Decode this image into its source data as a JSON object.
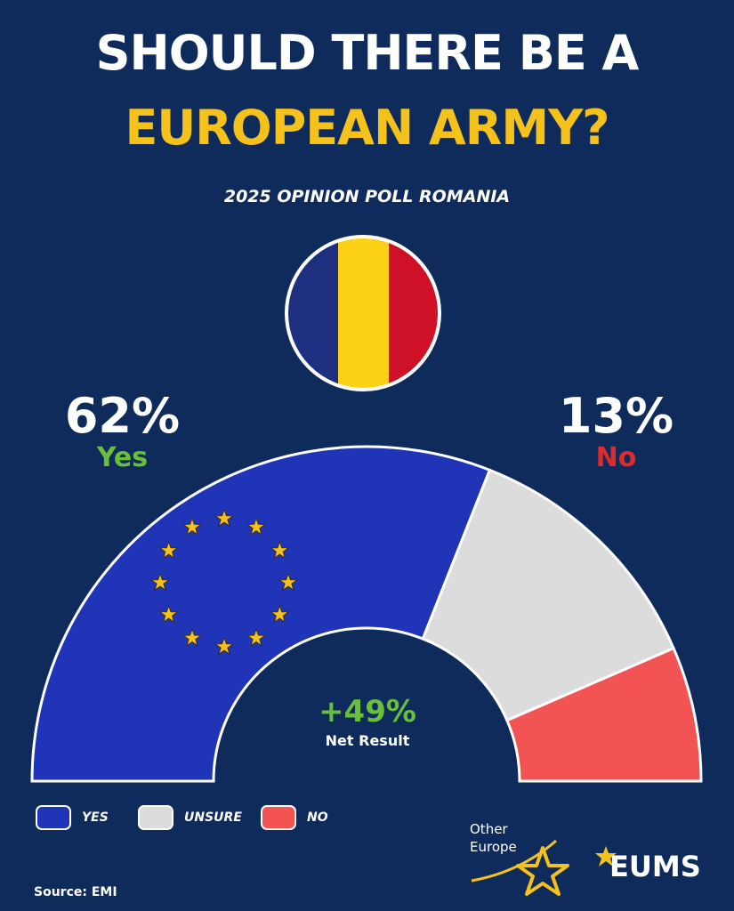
{
  "header": {
    "title_line1": "SHOULD THERE BE A",
    "title_line2": "EUROPEAN ARMY?",
    "subtitle": "2025 OPINION POLL ROMANIA"
  },
  "flag": {
    "stripes": [
      "#1d2f7e",
      "#fcd116",
      "#ce1126"
    ]
  },
  "callouts": {
    "yes_pct": "62%",
    "yes_label": "Yes",
    "no_pct": "13%",
    "no_label": "No",
    "net_value": "+49%",
    "net_label": "Net Result"
  },
  "legend": [
    {
      "label": "YES",
      "color": "#1f34b6"
    },
    {
      "label": "UNSURE",
      "color": "#dcdcdc"
    },
    {
      "label": "NO",
      "color": "#f25454"
    }
  ],
  "source": "Source: EMI",
  "logos": {
    "other_line1": "Other",
    "other_line2": "Europe",
    "eums": "EUMS"
  },
  "chart_data": {
    "type": "pie",
    "variant": "semicircle-donut",
    "title": "SHOULD THERE BE A EUROPEAN ARMY?",
    "subtitle": "2025 OPINION POLL ROMANIA",
    "categories": [
      "YES",
      "UNSURE",
      "NO"
    ],
    "values": [
      62,
      25,
      13
    ],
    "colors": [
      "#1f34b6",
      "#dcdcdc",
      "#f25454"
    ],
    "annotations": [
      "62% Yes",
      "13% No",
      "+49% Net Result"
    ],
    "legend_position": "bottom-left"
  }
}
